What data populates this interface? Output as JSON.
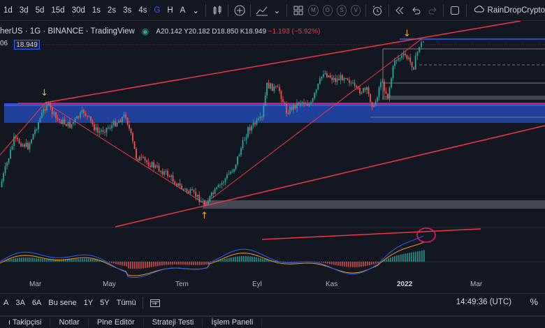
{
  "toolbar": {
    "timeframes": [
      "1d",
      "3d",
      "5d",
      "15d",
      "30d",
      "1s",
      "2s",
      "3s",
      "4s",
      "G",
      "H",
      "A"
    ],
    "active_timeframe": "G",
    "replay_circles": [
      "M",
      "O",
      "S",
      "V"
    ],
    "username": "RainDropCrypto"
  },
  "legend": {
    "symbol": "herUS · 1G · BINANCE · TradingView",
    "open": "A20.142",
    "high": "Y20.182",
    "low": "D18.850",
    "close": "K18.949",
    "change": "−1.193 (−5.92%)"
  },
  "price": {
    "left_label": "06",
    "current": "18.949"
  },
  "time_axis": [
    "Mar",
    "May",
    "Tem",
    "Eyl",
    "Kas",
    "2022",
    "Mar"
  ],
  "range_bar": {
    "ranges": [
      "A",
      "3A",
      "6A",
      "Bu sene",
      "1Y",
      "5Y",
      "Tümü"
    ],
    "clock": "14:49:36 (UTC)",
    "pct": "%"
  },
  "bottom_tabs": [
    "ı Takipçisi",
    "Notlar",
    "Pine Editör",
    "Strateji Testi",
    "İşlem Paneli"
  ],
  "colors": {
    "background": "#131722",
    "up": "#26a69a",
    "down": "#ef5350",
    "trendline": "#f23645",
    "zone": "#2962ff",
    "accent": "#2962ff"
  },
  "chart_data": {
    "type": "candlestick",
    "x_ticks": [
      "Mar",
      "May",
      "Tem",
      "Eyl",
      "Kas",
      "2022",
      "Mar"
    ],
    "last_close": 18.949,
    "change": -1.193,
    "change_pct": -5.92
  }
}
